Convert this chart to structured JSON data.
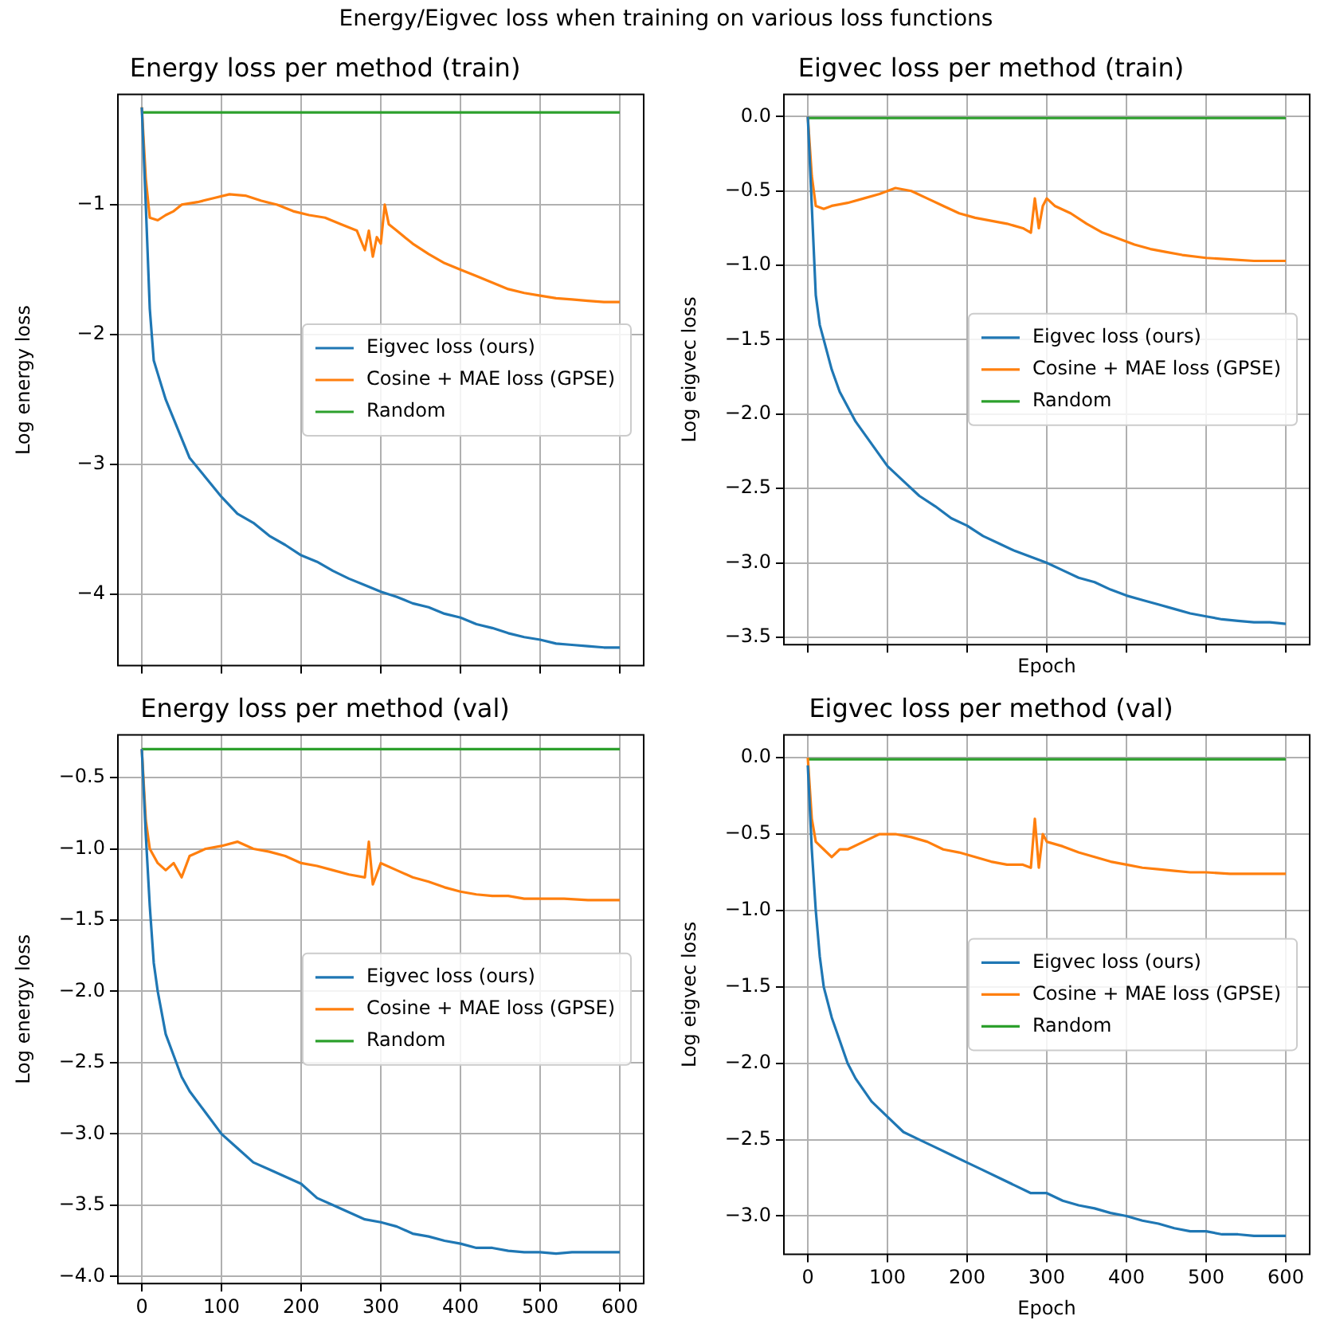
{
  "chart_data": [
    {
      "type": "line",
      "title": "Energy loss per method (train)",
      "ylabel": "Log energy loss",
      "annotations": [
        "Energy/Eigvec loss when training on various loss functions"
      ],
      "xlim": [
        -30,
        630
      ],
      "xticks": [
        0,
        100,
        200,
        300,
        400,
        500,
        600
      ],
      "ylim": [
        -4.55,
        -0.15
      ],
      "yticks": [
        -4,
        -3,
        -2,
        -1
      ],
      "grid": true,
      "legend": "center right",
      "tick_labels": "y",
      "series": [
        {
          "name": "Eigvec loss (ours)",
          "color": "#1f77b4",
          "x": [
            0,
            5,
            10,
            15,
            20,
            30,
            40,
            50,
            60,
            80,
            100,
            120,
            140,
            160,
            180,
            200,
            220,
            240,
            260,
            280,
            300,
            320,
            340,
            360,
            380,
            400,
            420,
            440,
            460,
            480,
            500,
            520,
            540,
            560,
            580,
            600
          ],
          "values": [
            -0.25,
            -1.0,
            -1.8,
            -2.2,
            -2.3,
            -2.5,
            -2.65,
            -2.8,
            -2.95,
            -3.1,
            -3.25,
            -3.38,
            -3.45,
            -3.55,
            -3.62,
            -3.7,
            -3.75,
            -3.82,
            -3.88,
            -3.93,
            -3.98,
            -4.02,
            -4.07,
            -4.1,
            -4.15,
            -4.18,
            -4.23,
            -4.26,
            -4.3,
            -4.33,
            -4.35,
            -4.38,
            -4.39,
            -4.4,
            -4.41,
            -4.41
          ]
        },
        {
          "name": "Cosine + MAE loss (GPSE)",
          "color": "#ff7f0e",
          "x": [
            0,
            5,
            10,
            20,
            30,
            40,
            50,
            70,
            90,
            110,
            130,
            150,
            170,
            190,
            210,
            230,
            250,
            270,
            280,
            285,
            290,
            295,
            300,
            305,
            310,
            320,
            340,
            360,
            380,
            400,
            420,
            440,
            460,
            480,
            500,
            520,
            540,
            560,
            580,
            600
          ],
          "values": [
            -0.25,
            -0.8,
            -1.1,
            -1.12,
            -1.08,
            -1.05,
            -1.0,
            -0.98,
            -0.95,
            -0.92,
            -0.93,
            -0.97,
            -1.0,
            -1.05,
            -1.08,
            -1.1,
            -1.15,
            -1.2,
            -1.35,
            -1.2,
            -1.4,
            -1.25,
            -1.3,
            -1.0,
            -1.15,
            -1.2,
            -1.3,
            -1.38,
            -1.45,
            -1.5,
            -1.55,
            -1.6,
            -1.65,
            -1.68,
            -1.7,
            -1.72,
            -1.73,
            -1.74,
            -1.75,
            -1.75
          ]
        },
        {
          "name": "Random",
          "color": "#2ca02c",
          "x": [
            0,
            600
          ],
          "values": [
            -0.29,
            -0.29
          ]
        }
      ]
    },
    {
      "type": "line",
      "title": "Eigvec loss per method (train)",
      "xlabel": "Epoch",
      "ylabel": "Log eigvec loss",
      "xlim": [
        -30,
        630
      ],
      "xticks": [
        0,
        100,
        200,
        300,
        400,
        500,
        600
      ],
      "ylim": [
        -3.55,
        0.15
      ],
      "yticks": [
        {
          "value": -3.5,
          "label": "−3.5"
        },
        {
          "value": -3,
          "label": "−3.0"
        },
        {
          "value": -2.5,
          "label": "−2.5"
        },
        {
          "value": -2,
          "label": "−2.0"
        },
        {
          "value": -1.5,
          "label": "−1.5"
        },
        {
          "value": -1,
          "label": "−1.0"
        },
        {
          "value": -0.5,
          "label": "−0.5"
        },
        {
          "value": 0,
          "label": "0.0"
        }
      ],
      "grid": true,
      "legend": "center right",
      "tick_labels": "y",
      "series": [
        {
          "name": "Eigvec loss (ours)",
          "color": "#1f77b4",
          "x": [
            0,
            5,
            10,
            15,
            20,
            30,
            40,
            50,
            60,
            80,
            100,
            120,
            140,
            160,
            180,
            200,
            220,
            240,
            260,
            280,
            300,
            320,
            340,
            360,
            380,
            400,
            420,
            440,
            460,
            480,
            500,
            520,
            540,
            560,
            580,
            600
          ],
          "values": [
            0.0,
            -0.6,
            -1.2,
            -1.4,
            -1.5,
            -1.7,
            -1.85,
            -1.95,
            -2.05,
            -2.2,
            -2.35,
            -2.45,
            -2.55,
            -2.62,
            -2.7,
            -2.75,
            -2.82,
            -2.87,
            -2.92,
            -2.96,
            -3.0,
            -3.05,
            -3.1,
            -3.13,
            -3.18,
            -3.22,
            -3.25,
            -3.28,
            -3.31,
            -3.34,
            -3.36,
            -3.38,
            -3.39,
            -3.4,
            -3.4,
            -3.41
          ]
        },
        {
          "name": "Cosine + MAE loss (GPSE)",
          "color": "#ff7f0e",
          "x": [
            0,
            5,
            10,
            20,
            30,
            50,
            70,
            90,
            110,
            130,
            150,
            170,
            190,
            210,
            230,
            250,
            270,
            280,
            285,
            290,
            295,
            300,
            310,
            330,
            350,
            370,
            390,
            410,
            430,
            450,
            470,
            500,
            530,
            560,
            600
          ],
          "values": [
            0,
            -0.4,
            -0.6,
            -0.62,
            -0.6,
            -0.58,
            -0.55,
            -0.52,
            -0.48,
            -0.5,
            -0.55,
            -0.6,
            -0.65,
            -0.68,
            -0.7,
            -0.72,
            -0.75,
            -0.78,
            -0.55,
            -0.75,
            -0.6,
            -0.55,
            -0.6,
            -0.65,
            -0.72,
            -0.78,
            -0.82,
            -0.86,
            -0.89,
            -0.91,
            -0.93,
            -0.95,
            -0.96,
            -0.97,
            -0.97
          ]
        },
        {
          "name": "Random",
          "color": "#2ca02c",
          "x": [
            0,
            600
          ],
          "values": [
            -0.01,
            -0.01
          ]
        }
      ]
    },
    {
      "type": "line",
      "title": "Energy loss per method (val)",
      "ylabel": "Log energy loss",
      "xlim": [
        -30,
        630
      ],
      "xticks": [
        0,
        100,
        200,
        300,
        400,
        500,
        600
      ],
      "ylim": [
        -4.05,
        -0.2
      ],
      "yticks": [
        {
          "value": -4,
          "label": "−4.0"
        },
        {
          "value": -3.5,
          "label": "−3.5"
        },
        {
          "value": -3,
          "label": "−3.0"
        },
        {
          "value": -2.5,
          "label": "−2.5"
        },
        {
          "value": -2,
          "label": "−2.0"
        },
        {
          "value": -1.5,
          "label": "−1.5"
        },
        {
          "value": -1,
          "label": "−1.0"
        },
        {
          "value": -0.5,
          "label": "−0.5"
        }
      ],
      "grid": true,
      "legend": "center right",
      "series": [
        {
          "name": "Eigvec loss (ours)",
          "color": "#1f77b4",
          "x": [
            0,
            5,
            10,
            15,
            20,
            30,
            40,
            50,
            60,
            80,
            100,
            120,
            140,
            160,
            180,
            200,
            220,
            240,
            260,
            280,
            300,
            320,
            340,
            360,
            380,
            400,
            420,
            440,
            460,
            480,
            500,
            520,
            540,
            560,
            580,
            600
          ],
          "values": [
            -0.3,
            -0.9,
            -1.4,
            -1.8,
            -2.0,
            -2.3,
            -2.45,
            -2.6,
            -2.7,
            -2.85,
            -3.0,
            -3.1,
            -3.2,
            -3.25,
            -3.3,
            -3.35,
            -3.45,
            -3.5,
            -3.55,
            -3.6,
            -3.62,
            -3.65,
            -3.7,
            -3.72,
            -3.75,
            -3.77,
            -3.8,
            -3.8,
            -3.82,
            -3.83,
            -3.83,
            -3.84,
            -3.83,
            -3.83,
            -3.83,
            -3.83
          ]
        },
        {
          "name": "Cosine + MAE loss (GPSE)",
          "color": "#ff7f0e",
          "x": [
            0,
            5,
            10,
            20,
            30,
            40,
            50,
            60,
            80,
            100,
            120,
            140,
            160,
            180,
            200,
            220,
            240,
            260,
            280,
            285,
            290,
            300,
            320,
            340,
            360,
            380,
            400,
            420,
            440,
            460,
            480,
            500,
            530,
            560,
            600
          ],
          "values": [
            -0.3,
            -0.8,
            -1.0,
            -1.1,
            -1.15,
            -1.1,
            -1.2,
            -1.05,
            -1.0,
            -0.98,
            -0.95,
            -1.0,
            -1.02,
            -1.05,
            -1.1,
            -1.12,
            -1.15,
            -1.18,
            -1.2,
            -0.95,
            -1.25,
            -1.1,
            -1.15,
            -1.2,
            -1.23,
            -1.27,
            -1.3,
            -1.32,
            -1.33,
            -1.33,
            -1.35,
            -1.35,
            -1.35,
            -1.36,
            -1.36
          ]
        },
        {
          "name": "Random",
          "color": "#2ca02c",
          "x": [
            0,
            600
          ],
          "values": [
            -0.3,
            -0.3
          ]
        }
      ]
    },
    {
      "type": "line",
      "title": "Eigvec loss per method (val)",
      "xlabel": "Epoch",
      "ylabel": "Log eigvec loss",
      "xlim": [
        -30,
        630
      ],
      "xticks": [
        0,
        100,
        200,
        300,
        400,
        500,
        600
      ],
      "ylim": [
        -3.25,
        0.15
      ],
      "yticks": [
        {
          "value": -3,
          "label": "−3.0"
        },
        {
          "value": -2.5,
          "label": "−2.5"
        },
        {
          "value": -2,
          "label": "−2.0"
        },
        {
          "value": -1.5,
          "label": "−1.5"
        },
        {
          "value": -1,
          "label": "−1.0"
        },
        {
          "value": -0.5,
          "label": "−0.5"
        },
        {
          "value": 0,
          "label": "0.0"
        }
      ],
      "grid": true,
      "legend": "center right",
      "series": [
        {
          "name": "Eigvec loss (ours)",
          "color": "#1f77b4",
          "x": [
            0,
            5,
            10,
            15,
            20,
            30,
            40,
            50,
            60,
            80,
            100,
            120,
            140,
            160,
            180,
            200,
            220,
            240,
            260,
            280,
            300,
            320,
            340,
            360,
            380,
            400,
            420,
            440,
            460,
            480,
            500,
            520,
            540,
            560,
            580,
            600
          ],
          "values": [
            -0.05,
            -0.6,
            -1.0,
            -1.3,
            -1.5,
            -1.7,
            -1.85,
            -2.0,
            -2.1,
            -2.25,
            -2.35,
            -2.45,
            -2.5,
            -2.55,
            -2.6,
            -2.65,
            -2.7,
            -2.75,
            -2.8,
            -2.85,
            -2.85,
            -2.9,
            -2.93,
            -2.95,
            -2.98,
            -3.0,
            -3.03,
            -3.05,
            -3.08,
            -3.1,
            -3.1,
            -3.12,
            -3.12,
            -3.13,
            -3.13,
            -3.13
          ]
        },
        {
          "name": "Cosine + MAE loss (GPSE)",
          "color": "#ff7f0e",
          "x": [
            0,
            5,
            10,
            20,
            30,
            40,
            50,
            70,
            90,
            110,
            130,
            150,
            170,
            190,
            210,
            230,
            250,
            270,
            280,
            285,
            290,
            295,
            300,
            320,
            340,
            360,
            380,
            400,
            420,
            440,
            460,
            480,
            500,
            530,
            560,
            600
          ],
          "values": [
            0,
            -0.4,
            -0.55,
            -0.6,
            -0.65,
            -0.6,
            -0.6,
            -0.55,
            -0.5,
            -0.5,
            -0.52,
            -0.55,
            -0.6,
            -0.62,
            -0.65,
            -0.68,
            -0.7,
            -0.7,
            -0.72,
            -0.4,
            -0.72,
            -0.5,
            -0.55,
            -0.58,
            -0.62,
            -0.65,
            -0.68,
            -0.7,
            -0.72,
            -0.73,
            -0.74,
            -0.75,
            -0.75,
            -0.76,
            -0.76,
            -0.76
          ]
        },
        {
          "name": "Random",
          "color": "#2ca02c",
          "x": [
            0,
            600
          ],
          "values": [
            -0.01,
            -0.01
          ]
        }
      ]
    }
  ]
}
